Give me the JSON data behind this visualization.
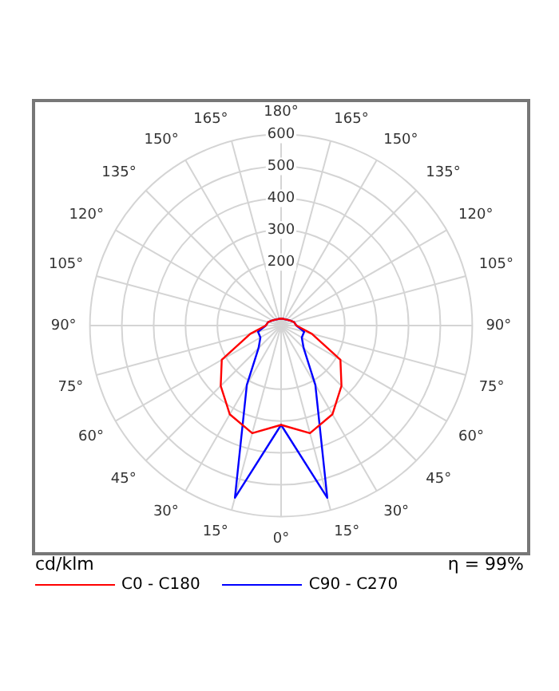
{
  "chart_data": {
    "type": "radar",
    "categories": [
      "180°",
      "165°",
      "150°",
      "135°",
      "120°",
      "105°",
      "90°",
      "75°",
      "60°",
      "45°",
      "30°",
      "15°",
      "0°",
      "15°",
      "30°",
      "45°",
      "60°",
      "75°",
      "90°",
      "105°",
      "120°",
      "135°",
      "150°",
      "165°"
    ],
    "series": [
      {
        "name": "C0 - C180",
        "color": "#ff0000",
        "values": [
          22,
          22,
          23,
          26,
          32,
          42,
          48,
          100,
          215,
          268,
          322,
          350,
          312,
          350,
          322,
          268,
          215,
          100,
          48,
          42,
          32,
          26,
          23,
          22
        ]
      },
      {
        "name": "C90 - C270",
        "color": "#0000ff",
        "values": [
          22,
          22,
          23,
          26,
          32,
          42,
          48,
          75,
          75,
          100,
          215,
          560,
          312,
          560,
          215,
          100,
          75,
          75,
          48,
          42,
          32,
          26,
          23,
          22
        ]
      }
    ],
    "ylim": [
      0,
      600
    ],
    "yticks": [
      200,
      300,
      400,
      500,
      600
    ],
    "grid": true,
    "legend": "bottom",
    "marker": "none",
    "line_style": "solid",
    "annotations": [
      "cd/klm",
      "η = 99%"
    ]
  }
}
